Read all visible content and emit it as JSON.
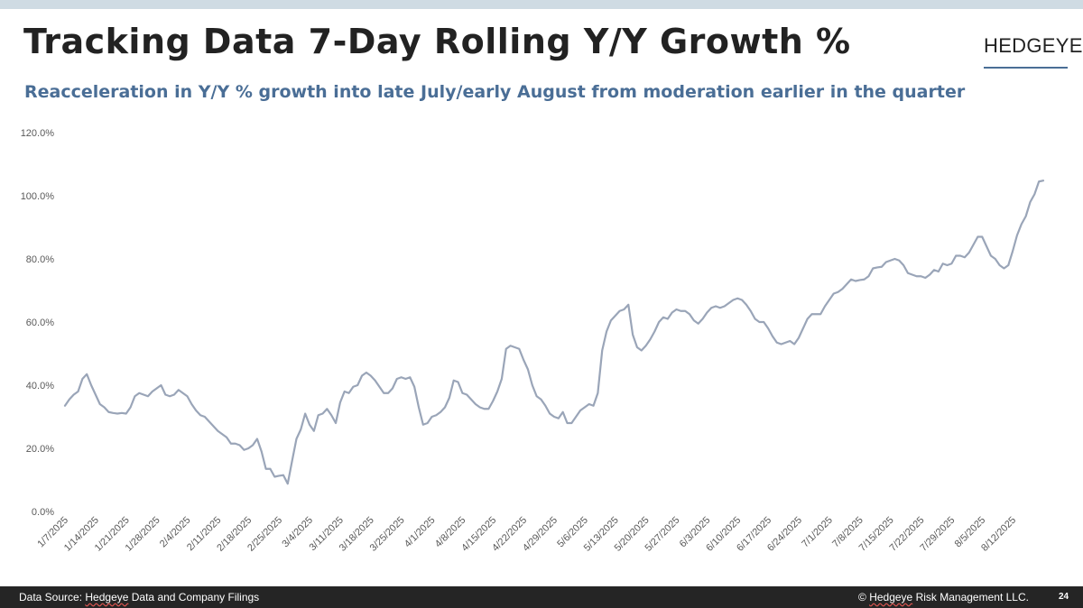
{
  "title": "Tracking Data 7-Day Rolling Y/Y Growth %",
  "subtitle": "Reacceleration in Y/Y % growth into late July/early August from moderation earlier in the quarter",
  "logo": "HEDGEYE",
  "footer": {
    "source_prefix": "Data Source: ",
    "source_company": "Hedgeye",
    "source_suffix": " Data and Company Filings",
    "copyright_prefix": "© ",
    "copyright_company": "Hedgeye",
    "copyright_suffix": " Risk Management LLC.",
    "page": "24"
  },
  "colors": {
    "line": "#9aa5b8",
    "title": "#222222",
    "subtitle": "#4a6e96",
    "footer_bg": "#252525",
    "top_bar": "#cfdbe3"
  },
  "chart_data": {
    "type": "line",
    "ylim": [
      0,
      120
    ],
    "y_ticks": [
      "0.0%",
      "20.0%",
      "40.0%",
      "60.0%",
      "80.0%",
      "100.0%",
      "120.0%"
    ],
    "x_ticks": [
      "1/7/2025",
      "1/14/2025",
      "1/21/2025",
      "1/28/2025",
      "2/4/2025",
      "2/11/2025",
      "2/18/2025",
      "2/25/2025",
      "3/4/2025",
      "3/11/2025",
      "3/18/2025",
      "3/25/2025",
      "4/1/2025",
      "4/8/2025",
      "4/15/2025",
      "4/22/2025",
      "4/29/2025",
      "5/6/2025",
      "5/13/2025",
      "5/20/2025",
      "5/27/2025",
      "6/3/2025",
      "6/10/2025",
      "6/17/2025",
      "6/24/2025",
      "7/1/2025",
      "7/8/2025",
      "7/15/2025",
      "7/22/2025",
      "7/29/2025",
      "8/5/2025",
      "8/12/2025"
    ],
    "grid": false,
    "legend": "none",
    "series": [
      {
        "start": "1/7/2025",
        "values": [
          33.5,
          35.5,
          37,
          38,
          42,
          43.5,
          40,
          37,
          34,
          33,
          31.5,
          31.2,
          31,
          31.2,
          31,
          33,
          36.5,
          37.5,
          37,
          36.5,
          38,
          39,
          40,
          37,
          36.5,
          37,
          38.5,
          37.5,
          36.5,
          34,
          32,
          30.5,
          30,
          28.5,
          27,
          25.5,
          24.5,
          23.5,
          21.5,
          21.5,
          21,
          19.5,
          20,
          21,
          23,
          19,
          13.5,
          13.5,
          11,
          11.3,
          11.5,
          8.8,
          16,
          23,
          26,
          31,
          27.5,
          25.5,
          30.5,
          31,
          32.5,
          30.5,
          28,
          34.5,
          38,
          37.5,
          39.5,
          40,
          43,
          44,
          43,
          41.5,
          39.5,
          37.5,
          37.5,
          39,
          42,
          42.5,
          42,
          42.5,
          39.5,
          33,
          27.5,
          28,
          30,
          30.5,
          31.5,
          33,
          36,
          41.5,
          41,
          37.5,
          37,
          35.5,
          34,
          33,
          32.5,
          32.5,
          35,
          38,
          42,
          51.5,
          52.5,
          52,
          51.5,
          48,
          45,
          40,
          36.5,
          35.5,
          33.5,
          31,
          30,
          29.5,
          31.5,
          28,
          28,
          30,
          32,
          33,
          34,
          33.5,
          37.5,
          51,
          57,
          60.5,
          62,
          63.5,
          64,
          65.5,
          56,
          52,
          51,
          52.5,
          54.5,
          57,
          60,
          61.5,
          61,
          63,
          64,
          63.5,
          63.5,
          62.5,
          60.5,
          59.5,
          61,
          63,
          64.5,
          65,
          64.5,
          65,
          66,
          67,
          67.5,
          67,
          65.5,
          63.5,
          61,
          60,
          60,
          58,
          55.5,
          53.5,
          53,
          53.5,
          54,
          53,
          55,
          58,
          61,
          62.5,
          62.5,
          62.5,
          65,
          67,
          69,
          69.5,
          70.5,
          72,
          73.5,
          73,
          73.3,
          73.5,
          74.5,
          77,
          77.3,
          77.5,
          79,
          79.5,
          80,
          79.5,
          78,
          75.5,
          75,
          74.5,
          74.5,
          74,
          75,
          76.5,
          76,
          78.5,
          78,
          78.5,
          81,
          81,
          80.5,
          82,
          84.5,
          87,
          87,
          84,
          81,
          80,
          78,
          77,
          78,
          82.5,
          87.5,
          91,
          93.5,
          98,
          100.5,
          104.5,
          104.8
        ]
      }
    ]
  }
}
